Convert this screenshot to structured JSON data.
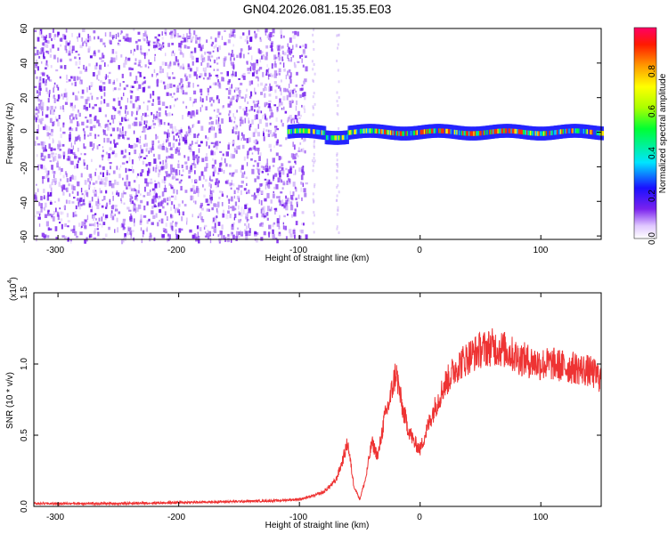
{
  "title": "GN04.2026.081.15.35.E03",
  "colors": {
    "spectrogram_scatter": "#7722ee",
    "snr_line": "#ee3333"
  },
  "chart_data": [
    {
      "type": "heatmap",
      "name": "spectrogram",
      "xlabel": "Height of straight line (km)",
      "ylabel": "Frequency (Hz)",
      "xlim": [
        -320,
        150
      ],
      "ylim": [
        -62,
        60
      ],
      "xticks": [
        -300,
        -200,
        -100,
        0,
        100
      ],
      "xtick_labels": [
        "-300",
        "-200",
        "-100",
        "0",
        "100"
      ],
      "yticks": [
        -60,
        -40,
        -20,
        0,
        20,
        40,
        60
      ],
      "ytick_labels": [
        "-60",
        "-40",
        "-20",
        "0",
        "20",
        "40",
        "60"
      ],
      "noise_region_km": [
        -320,
        -100
      ],
      "carrier_start_km": -110,
      "carrier_center_hz": 0,
      "carrier_spread_hz": 4,
      "colorbar": {
        "label": "Normalized spectral amplitude",
        "range": [
          0,
          1
        ],
        "ticks": [
          0.0,
          0.2,
          0.4,
          0.6,
          0.8
        ],
        "tick_labels": [
          "0.0",
          "0.2",
          "0.4",
          "0.6",
          "0.8"
        ]
      }
    },
    {
      "type": "line",
      "name": "snr",
      "xlabel": "Height of straight line (km)",
      "ylabel": "SNR (10 * v/v)",
      "scale_label": "(x10",
      "scale_exponent": "4",
      "scale_suffix": ")",
      "xlim": [
        -320,
        150
      ],
      "ylim": [
        0,
        1.5
      ],
      "xticks": [
        -300,
        -200,
        -100,
        0,
        100
      ],
      "xtick_labels": [
        "-300",
        "-200",
        "-100",
        "0",
        "100"
      ],
      "yticks": [
        0.0,
        0.5,
        1.0,
        1.5
      ],
      "ytick_labels": [
        "0.0",
        "0.5",
        "1.0",
        "1.5"
      ],
      "series": [
        {
          "name": "SNR",
          "x": [
            -320,
            -250,
            -180,
            -120,
            -100,
            -90,
            -80,
            -70,
            -65,
            -60,
            -55,
            -50,
            -45,
            -40,
            -35,
            -30,
            -25,
            -20,
            -15,
            -10,
            -5,
            0,
            10,
            20,
            30,
            40,
            50,
            60,
            70,
            80,
            90,
            100,
            110,
            120,
            130,
            140,
            150
          ],
          "y": [
            0.02,
            0.02,
            0.03,
            0.04,
            0.05,
            0.07,
            0.1,
            0.18,
            0.3,
            0.45,
            0.15,
            0.05,
            0.2,
            0.45,
            0.35,
            0.6,
            0.75,
            0.95,
            0.7,
            0.55,
            0.45,
            0.4,
            0.65,
            0.85,
            0.98,
            1.05,
            1.1,
            1.12,
            1.1,
            1.05,
            1.02,
            1.0,
            1.0,
            0.98,
            0.97,
            0.95,
            0.9
          ]
        }
      ]
    }
  ]
}
